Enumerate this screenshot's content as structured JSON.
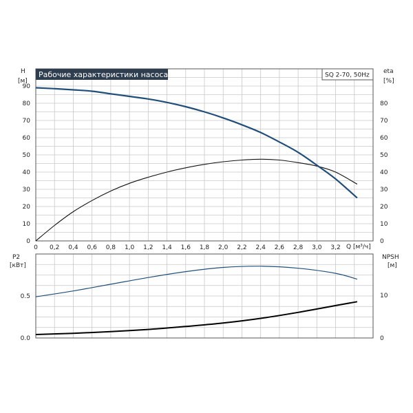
{
  "chart_data": [
    {
      "type": "line",
      "title": "Рабочие характеристики насоса",
      "label_box": "SQ 2-70, 50Hz",
      "ylabel_left": [
        "H",
        "[м]"
      ],
      "ylabel_right": [
        "eta",
        "[%]"
      ],
      "xlabel": "Q [м³/ч]",
      "xlim": [
        0,
        3.6
      ],
      "ylim": [
        0,
        100
      ],
      "x_ticks": [
        "0",
        "0,2",
        "0,4",
        "0,6",
        "0,8",
        "1,0",
        "1,2",
        "1,4",
        "1,6",
        "1,8",
        "2,0",
        "2,2",
        "2,4",
        "2,6",
        "2,8",
        "3,0",
        "3,2"
      ],
      "y_ticks_left": [
        "0",
        "10",
        "20",
        "30",
        "40",
        "50",
        "60",
        "70",
        "80",
        "90"
      ],
      "y_ticks_right": [
        "0",
        "10",
        "20",
        "30",
        "40",
        "50",
        "60",
        "70",
        "80"
      ],
      "grid": true,
      "series": [
        {
          "name": "H",
          "color": "#1f4e79",
          "x": [
            0,
            0.2,
            0.4,
            0.6,
            0.8,
            1.0,
            1.2,
            1.4,
            1.6,
            1.8,
            2.0,
            2.2,
            2.4,
            2.6,
            2.8,
            3.0,
            3.2,
            3.43
          ],
          "y": [
            89,
            88.5,
            87.8,
            87,
            85.5,
            84,
            82.5,
            80.5,
            78,
            75,
            71.5,
            67.5,
            63,
            57.5,
            51.5,
            44,
            36,
            25
          ]
        },
        {
          "name": "eta",
          "color": "#111111",
          "x": [
            0,
            0.2,
            0.4,
            0.6,
            0.8,
            1.0,
            1.2,
            1.4,
            1.6,
            1.8,
            2.0,
            2.2,
            2.4,
            2.6,
            2.8,
            3.0,
            3.2,
            3.43
          ],
          "y": [
            0,
            9,
            17,
            23.5,
            29,
            33.5,
            37,
            40,
            42.5,
            44.5,
            46,
            47,
            47.5,
            47,
            45.5,
            43.5,
            40,
            33
          ]
        }
      ]
    },
    {
      "type": "line",
      "ylabel_left": [
        "P2",
        "[кВт]"
      ],
      "ylabel_right": [
        "NPSH",
        "[м]"
      ],
      "xlim": [
        0,
        3.6
      ],
      "y_ticks_left": [
        "0.0",
        "0.5"
      ],
      "y_ticks_right": [
        "0",
        "10"
      ],
      "grid": true,
      "series": [
        {
          "name": "P2",
          "color": "#1f4e79",
          "x": [
            0,
            0.4,
            0.8,
            1.2,
            1.6,
            2.0,
            2.4,
            2.8,
            3.2,
            3.43
          ],
          "y": [
            0.49,
            0.56,
            0.64,
            0.72,
            0.79,
            0.84,
            0.855,
            0.83,
            0.77,
            0.7
          ]
        },
        {
          "name": "NPSH",
          "color": "#000000",
          "x": [
            0,
            0.4,
            0.8,
            1.2,
            1.6,
            2.0,
            2.4,
            2.8,
            3.2,
            3.43
          ],
          "y": [
            0.8,
            1.1,
            1.5,
            2.0,
            2.7,
            3.5,
            4.6,
            6.0,
            7.6,
            8.5
          ]
        }
      ]
    }
  ]
}
